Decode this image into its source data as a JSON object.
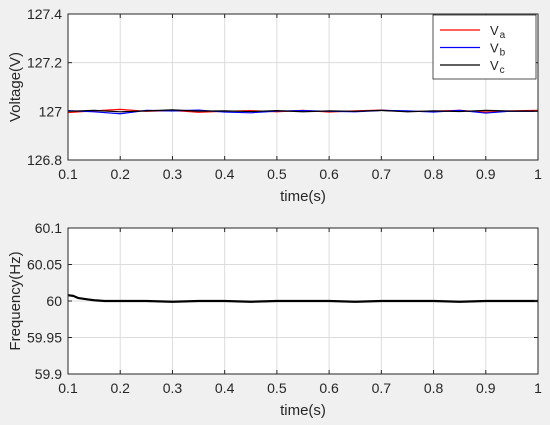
{
  "chart_data": [
    {
      "type": "line",
      "xlabel": "time(s)",
      "ylabel": "Voltage(V)",
      "xlim": [
        0.1,
        1.0
      ],
      "ylim": [
        126.8,
        127.4
      ],
      "xticks": [
        0.1,
        0.2,
        0.3,
        0.4,
        0.5,
        0.6,
        0.7,
        0.8,
        0.9,
        1.0
      ],
      "xtick_labels": [
        "0.1",
        "0.2",
        "0.3",
        "0.4",
        "0.5",
        "0.6",
        "0.7",
        "0.8",
        "0.9",
        "1"
      ],
      "yticks": [
        126.8,
        127.0,
        127.2,
        127.4
      ],
      "ytick_labels": [
        "126.8",
        "127",
        "127.2",
        "127.4"
      ],
      "grid": true,
      "legend": {
        "placement": "top-right"
      },
      "series": [
        {
          "name": "Va",
          "name_main": "V",
          "name_sub": "a",
          "color": "#ff0000",
          "x": [
            0.1,
            0.15,
            0.2,
            0.25,
            0.3,
            0.35,
            0.4,
            0.45,
            0.5,
            0.55,
            0.6,
            0.65,
            0.7,
            0.75,
            0.8,
            0.85,
            0.9,
            0.95,
            1.0
          ],
          "y": [
            126.995,
            127.002,
            127.008,
            127.0,
            127.004,
            126.996,
            127.0,
            127.003,
            126.998,
            127.004,
            126.997,
            127.002,
            127.005,
            126.999,
            127.001,
            127.004,
            126.997,
            127.002,
            127.004
          ]
        },
        {
          "name": "Vb",
          "name_main": "V",
          "name_sub": "b",
          "color": "#0000ff",
          "x": [
            0.1,
            0.15,
            0.2,
            0.25,
            0.3,
            0.35,
            0.4,
            0.45,
            0.5,
            0.55,
            0.6,
            0.65,
            0.7,
            0.75,
            0.8,
            0.85,
            0.9,
            0.95,
            1.0
          ],
          "y": [
            127.003,
            126.998,
            126.99,
            127.004,
            127.002,
            127.005,
            126.997,
            126.994,
            127.001,
            127.003,
            127.0,
            126.998,
            127.004,
            127.002,
            126.997,
            127.004,
            126.993,
            127.001,
            127.0
          ]
        },
        {
          "name": "Vc",
          "name_main": "V",
          "name_sub": "c",
          "color": "#000000",
          "x": [
            0.1,
            0.15,
            0.2,
            0.25,
            0.3,
            0.35,
            0.4,
            0.45,
            0.5,
            0.55,
            0.6,
            0.65,
            0.7,
            0.75,
            0.8,
            0.85,
            0.9,
            0.95,
            1.0
          ],
          "y": [
            127.0,
            127.004,
            126.998,
            127.002,
            127.006,
            127.001,
            127.002,
            126.999,
            127.003,
            126.998,
            127.002,
            127.0,
            127.004,
            126.998,
            127.002,
            126.999,
            127.004,
            127.001,
            127.001
          ]
        }
      ]
    },
    {
      "type": "line",
      "xlabel": "time(s)",
      "ylabel": "Frequency(Hz)",
      "xlim": [
        0.1,
        1.0
      ],
      "ylim": [
        59.9,
        60.1
      ],
      "xticks": [
        0.1,
        0.2,
        0.3,
        0.4,
        0.5,
        0.6,
        0.7,
        0.8,
        0.9,
        1.0
      ],
      "xtick_labels": [
        "0.1",
        "0.2",
        "0.3",
        "0.4",
        "0.5",
        "0.6",
        "0.7",
        "0.8",
        "0.9",
        "1"
      ],
      "yticks": [
        59.9,
        59.95,
        60.0,
        60.05,
        60.1
      ],
      "ytick_labels": [
        "59.9",
        "59.95",
        "60",
        "60.05",
        "60.1"
      ],
      "grid": true,
      "series": [
        {
          "color": "#000000",
          "x": [
            0.1,
            0.11,
            0.12,
            0.13,
            0.14,
            0.15,
            0.17,
            0.2,
            0.25,
            0.3,
            0.35,
            0.4,
            0.45,
            0.5,
            0.55,
            0.6,
            0.65,
            0.7,
            0.75,
            0.8,
            0.85,
            0.9,
            0.95,
            1.0
          ],
          "y": [
            60.008,
            60.007,
            60.004,
            60.003,
            60.002,
            60.001,
            60.0,
            60.0,
            60.0,
            59.999,
            60.0,
            60.0,
            59.999,
            60.0,
            60.0,
            60.0,
            59.999,
            60.0,
            60.0,
            60.0,
            59.999,
            60.0,
            60.0,
            60.0
          ]
        }
      ]
    }
  ]
}
